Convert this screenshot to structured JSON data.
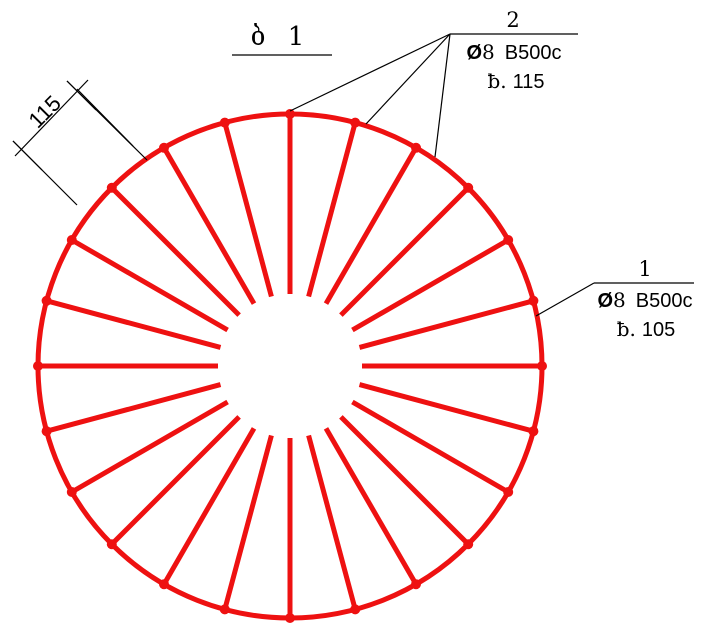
{
  "title": {
    "letter": "ბ",
    "number": "1"
  },
  "callout_top": {
    "position": "2",
    "diameter_symbol": "Ø",
    "diameter": "8",
    "steel_class": "B500c",
    "length_prefix": "ƀ.",
    "length": "115"
  },
  "callout_right": {
    "position": "1",
    "diameter_symbol": "Ø",
    "diameter": "8",
    "steel_class": "B500c",
    "length_prefix": "ƀ.",
    "length": "105"
  },
  "dimension": {
    "value": "115"
  },
  "rebar": {
    "color": "#ee1111",
    "radial_bar_count": 24
  }
}
